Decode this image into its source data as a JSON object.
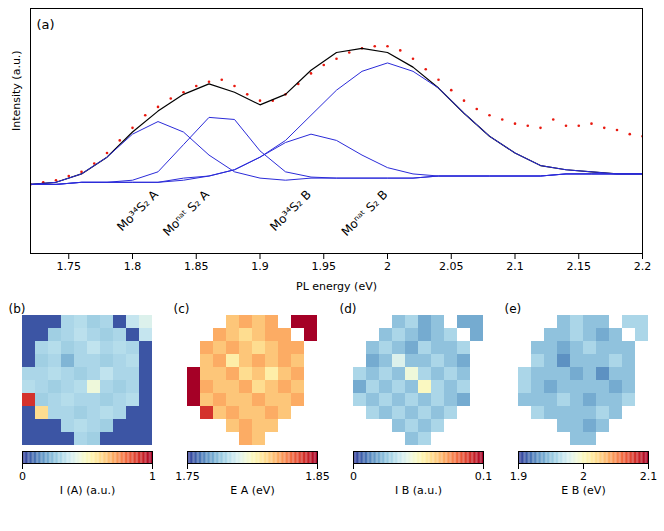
{
  "chart_data": [
    {
      "type": "line",
      "title": "(a)",
      "x_label": "PL energy (eV)",
      "y_label": "Intensity (a.u.)",
      "xlim": [
        1.72,
        2.2
      ],
      "xticks": [
        1.75,
        1.8,
        1.85,
        1.9,
        1.95,
        2,
        2.05,
        2.1,
        2.15,
        2.2
      ],
      "ylim": [
        0,
        1.17
      ],
      "yticks": [],
      "tick_labels": "x",
      "series": [
        {
          "type": "scatter",
          "marker": "dot",
          "color": "#e8190f",
          "x": [
            1.72,
            1.73,
            1.74,
            1.75,
            1.76,
            1.77,
            1.78,
            1.79,
            1.8,
            1.81,
            1.82,
            1.83,
            1.84,
            1.85,
            1.86,
            1.87,
            1.88,
            1.89,
            1.9,
            1.91,
            1.92,
            1.93,
            1.94,
            1.95,
            1.96,
            1.97,
            1.98,
            1.99,
            2,
            2.01,
            2.02,
            2.03,
            2.04,
            2.05,
            2.06,
            2.07,
            2.08,
            2.09,
            2.1,
            2.11,
            2.12,
            2.13,
            2.14,
            2.15,
            2.16,
            2.17,
            2.18,
            2.19,
            2.2
          ],
          "values": [
            0.33,
            0.34,
            0.35,
            0.37,
            0.39,
            0.43,
            0.48,
            0.54,
            0.6,
            0.66,
            0.7,
            0.74,
            0.77,
            0.8,
            0.82,
            0.83,
            0.8,
            0.76,
            0.73,
            0.73,
            0.76,
            0.81,
            0.86,
            0.9,
            0.93,
            0.96,
            0.98,
            0.99,
            0.99,
            0.97,
            0.93,
            0.88,
            0.83,
            0.78,
            0.73,
            0.69,
            0.66,
            0.64,
            0.62,
            0.61,
            0.6,
            0.64,
            0.61,
            0.61,
            0.62,
            0.6,
            0.59,
            0.57,
            0.56
          ]
        },
        {
          "type": "line",
          "color": "#000000",
          "x": [
            1.72,
            1.74,
            1.76,
            1.78,
            1.8,
            1.82,
            1.84,
            1.86,
            1.88,
            1.9,
            1.92,
            1.94,
            1.96,
            1.98,
            2,
            2.02,
            2.04,
            2.06,
            2.08,
            2.1,
            2.12,
            2.14,
            2.16,
            2.18,
            2.2
          ],
          "values": [
            0.33,
            0.34,
            0.38,
            0.46,
            0.58,
            0.68,
            0.76,
            0.81,
            0.77,
            0.71,
            0.76,
            0.875,
            0.96,
            0.98,
            0.96,
            0.89,
            0.79,
            0.67,
            0.56,
            0.48,
            0.42,
            0.4,
            0.39,
            0.38,
            0.38
          ]
        },
        {
          "name": "Mo³⁴S₂ A",
          "type": "line",
          "color": "#2b2bd9",
          "x": [
            1.72,
            1.74,
            1.76,
            1.78,
            1.8,
            1.82,
            1.84,
            1.86,
            1.88,
            1.9,
            1.92,
            1.94,
            1.96,
            1.98,
            2,
            2.02,
            2.04,
            2.06,
            2.08,
            2.1,
            2.12,
            2.14,
            2.16,
            2.18,
            2.2
          ],
          "values": [
            0.33,
            0.34,
            0.38,
            0.46,
            0.57,
            0.63,
            0.58,
            0.47,
            0.39,
            0.36,
            0.35,
            0.36,
            0.36,
            0.36,
            0.36,
            0.36,
            0.37,
            0.37,
            0.37,
            0.37,
            0.37,
            0.38,
            0.38,
            0.38,
            0.38
          ]
        },
        {
          "name": "Moⁿᵃᵗ S₂ A",
          "type": "line",
          "color": "#2b2bd9",
          "x": [
            1.72,
            1.74,
            1.76,
            1.78,
            1.8,
            1.82,
            1.84,
            1.86,
            1.88,
            1.9,
            1.92,
            1.94,
            1.96,
            1.98,
            2,
            2.02,
            2.04,
            2.06,
            2.08,
            2.1,
            2.12,
            2.14,
            2.16,
            2.18,
            2.2
          ],
          "values": [
            0.33,
            0.33,
            0.34,
            0.34,
            0.35,
            0.39,
            0.52,
            0.65,
            0.64,
            0.49,
            0.39,
            0.365,
            0.36,
            0.36,
            0.36,
            0.36,
            0.37,
            0.37,
            0.37,
            0.37,
            0.37,
            0.38,
            0.38,
            0.38,
            0.38
          ]
        },
        {
          "name": "Mo³⁴S₂ B",
          "type": "line",
          "color": "#2b2bd9",
          "x": [
            1.72,
            1.74,
            1.76,
            1.78,
            1.8,
            1.82,
            1.84,
            1.86,
            1.88,
            1.9,
            1.92,
            1.94,
            1.96,
            1.98,
            2,
            2.02,
            2.04,
            2.06,
            2.08,
            2.1,
            2.12,
            2.14,
            2.16,
            2.18,
            2.2
          ],
          "values": [
            0.33,
            0.33,
            0.34,
            0.34,
            0.34,
            0.34,
            0.35,
            0.37,
            0.4,
            0.46,
            0.53,
            0.57,
            0.54,
            0.47,
            0.41,
            0.38,
            0.37,
            0.37,
            0.37,
            0.37,
            0.37,
            0.38,
            0.38,
            0.38,
            0.38
          ]
        },
        {
          "name": "Moⁿᵃᵗ S₂ B",
          "type": "line",
          "color": "#2b2bd9",
          "x": [
            1.72,
            1.74,
            1.76,
            1.78,
            1.8,
            1.82,
            1.84,
            1.86,
            1.88,
            1.9,
            1.92,
            1.94,
            1.96,
            1.98,
            2,
            2.02,
            2.04,
            2.06,
            2.08,
            2.1,
            2.12,
            2.14,
            2.16,
            2.18,
            2.2
          ],
          "values": [
            0.33,
            0.33,
            0.34,
            0.34,
            0.34,
            0.34,
            0.36,
            0.37,
            0.4,
            0.46,
            0.54,
            0.66,
            0.78,
            0.87,
            0.91,
            0.87,
            0.79,
            0.67,
            0.56,
            0.48,
            0.42,
            0.4,
            0.39,
            0.38,
            0.38
          ]
        }
      ]
    },
    {
      "type": "heatmap",
      "title": "(b)",
      "tick_labels": false,
      "colorbar": {
        "label": "I (A) (a.u.)",
        "range": [
          0,
          1
        ],
        "ticks": [
          0,
          1
        ]
      },
      "cells": [
        [
          0.05,
          0.05,
          0.05,
          0.3,
          0.32,
          0.28,
          0.3,
          0.05,
          0.35,
          0.4
        ],
        [
          0.05,
          0.05,
          0.28,
          0.3,
          0.33,
          0.3,
          0.28,
          0.3,
          0.05,
          0.35
        ],
        [
          0.05,
          0.3,
          0.32,
          0.28,
          0.3,
          0.34,
          0.3,
          0.32,
          0.3,
          0.05
        ],
        [
          0.05,
          0.28,
          0.3,
          0.22,
          0.3,
          0.3,
          0.28,
          0.3,
          0.32,
          0.05
        ],
        [
          0.3,
          0.3,
          0.32,
          0.3,
          0.28,
          0.3,
          0.34,
          0.3,
          0.3,
          0.05
        ],
        [
          0.32,
          0.3,
          0.28,
          0.3,
          0.32,
          0.45,
          0.3,
          0.28,
          0.3,
          0.05
        ],
        [
          0.9,
          0.28,
          0.3,
          0.32,
          0.3,
          0.3,
          0.28,
          0.3,
          0.32,
          0.05
        ],
        [
          0.05,
          0.6,
          0.3,
          0.3,
          0.28,
          0.3,
          0.32,
          0.3,
          0.05,
          0.05
        ],
        [
          0.05,
          0.05,
          0.05,
          0.3,
          0.32,
          0.3,
          0.28,
          0.05,
          0.05,
          0.05
        ],
        [
          0.05,
          0.05,
          0.05,
          0.05,
          0.3,
          0.28,
          0.05,
          0.05,
          0.05,
          0.05
        ]
      ]
    },
    {
      "type": "heatmap",
      "title": "(c)",
      "tick_labels": false,
      "colorbar": {
        "label": "E A (eV)",
        "range": [
          1.75,
          1.85
        ],
        "ticks": [
          1.75,
          1.85
        ]
      },
      "cells": [
        [
          null,
          null,
          null,
          1.815,
          1.82,
          1.815,
          1.82,
          null,
          1.85,
          1.85
        ],
        [
          null,
          null,
          1.82,
          1.815,
          1.81,
          1.815,
          1.82,
          1.82,
          null,
          1.85
        ],
        [
          null,
          1.82,
          1.815,
          1.82,
          1.815,
          1.81,
          1.815,
          1.82,
          1.82,
          null
        ],
        [
          null,
          1.815,
          1.82,
          1.805,
          1.815,
          1.82,
          1.815,
          1.82,
          1.815,
          null
        ],
        [
          1.85,
          1.815,
          1.815,
          1.82,
          1.81,
          1.815,
          1.805,
          1.815,
          1.82,
          null
        ],
        [
          1.85,
          1.82,
          1.815,
          1.815,
          1.82,
          1.81,
          1.815,
          1.82,
          1.815,
          null
        ],
        [
          1.85,
          1.815,
          1.82,
          1.815,
          1.815,
          1.82,
          1.815,
          1.815,
          1.82,
          null
        ],
        [
          null,
          1.84,
          1.815,
          1.82,
          1.815,
          1.815,
          1.82,
          1.815,
          null,
          null
        ],
        [
          null,
          null,
          null,
          1.815,
          1.82,
          1.815,
          1.815,
          null,
          null,
          null
        ],
        [
          null,
          null,
          null,
          null,
          1.82,
          1.815,
          null,
          null,
          null,
          null
        ]
      ]
    },
    {
      "type": "heatmap",
      "title": "(d)",
      "tick_labels": false,
      "colorbar": {
        "label": "I B (a.u.)",
        "range": [
          0,
          0.1
        ],
        "ticks": [
          0,
          0.1
        ]
      },
      "cells": [
        [
          null,
          null,
          null,
          0.025,
          0.03,
          0.02,
          0.025,
          null,
          0.02,
          0.02
        ],
        [
          null,
          null,
          0.025,
          0.03,
          0.025,
          0.02,
          0.025,
          0.03,
          null,
          0.02
        ],
        [
          null,
          0.025,
          0.03,
          0.025,
          0.02,
          0.03,
          0.025,
          0.025,
          0.03,
          null
        ],
        [
          null,
          0.02,
          0.025,
          0.04,
          0.025,
          0.025,
          0.03,
          0.025,
          0.02,
          null
        ],
        [
          0.03,
          0.025,
          0.03,
          0.025,
          0.045,
          0.03,
          0.025,
          0.03,
          0.025,
          null
        ],
        [
          0.02,
          0.03,
          0.025,
          0.03,
          0.025,
          0.05,
          0.03,
          0.025,
          0.03,
          null
        ],
        [
          0.03,
          0.025,
          0.03,
          0.025,
          0.03,
          0.025,
          0.03,
          0.025,
          0.02,
          null
        ],
        [
          null,
          0.03,
          0.025,
          0.03,
          0.025,
          0.03,
          0.025,
          0.03,
          null,
          null
        ],
        [
          null,
          null,
          null,
          0.025,
          0.03,
          0.025,
          0.03,
          null,
          null,
          null
        ],
        [
          null,
          null,
          null,
          null,
          0.025,
          0.03,
          null,
          null,
          null,
          null
        ]
      ]
    },
    {
      "type": "heatmap",
      "title": "(e)",
      "tick_labels": false,
      "colorbar": {
        "label": "E B (eV)",
        "range": [
          1.9,
          2.1
        ],
        "ticks": [
          1.9,
          2,
          2.1
        ]
      },
      "cells": [
        [
          null,
          null,
          null,
          1.95,
          1.96,
          1.95,
          1.95,
          null,
          1.96,
          1.96
        ],
        [
          null,
          null,
          1.95,
          1.95,
          1.96,
          1.95,
          1.94,
          1.95,
          null,
          1.96
        ],
        [
          null,
          1.95,
          1.95,
          1.94,
          1.95,
          1.96,
          1.95,
          1.95,
          1.95,
          null
        ],
        [
          null,
          1.96,
          1.95,
          1.93,
          1.95,
          1.95,
          1.95,
          1.96,
          1.95,
          null
        ],
        [
          1.96,
          1.95,
          1.95,
          1.95,
          1.94,
          1.95,
          1.93,
          1.95,
          1.95,
          null
        ],
        [
          1.96,
          1.95,
          1.94,
          1.95,
          1.95,
          1.95,
          1.95,
          1.94,
          1.95,
          null
        ],
        [
          1.95,
          1.95,
          1.95,
          1.96,
          1.95,
          1.94,
          1.95,
          1.95,
          1.96,
          null
        ],
        [
          null,
          1.96,
          1.95,
          1.95,
          1.95,
          1.95,
          1.96,
          1.95,
          null,
          null
        ],
        [
          null,
          null,
          null,
          1.95,
          1.95,
          1.94,
          1.95,
          null,
          null,
          null
        ],
        [
          null,
          null,
          null,
          null,
          1.95,
          1.95,
          null,
          null,
          null,
          null
        ]
      ]
    }
  ]
}
